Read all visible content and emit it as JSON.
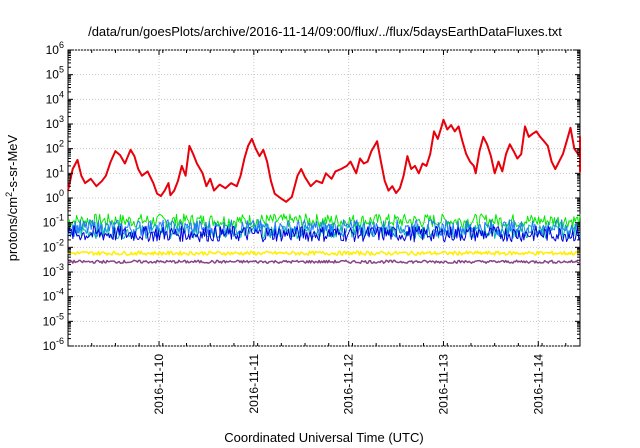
{
  "chart_data": {
    "type": "line",
    "title": "/data/run/goesPlots/archive/2016-11-14/09:00/flux/../flux/5daysEarthDataFluxes.txt",
    "xlabel": "Coordinated Universal Time (UTC)",
    "ylabel": {
      "pre": "protons/cm",
      "sup": "2",
      "post": "-s-sr-MeV"
    },
    "yscale": "log",
    "ylim": [
      1e-06,
      1000000.0
    ],
    "y_ticks": [
      {
        "value": 1e-06,
        "base": "10",
        "exp": "-6"
      },
      {
        "value": 1e-05,
        "base": "10",
        "exp": "-5"
      },
      {
        "value": 0.0001,
        "base": "10",
        "exp": "-4"
      },
      {
        "value": 0.001,
        "base": "10",
        "exp": "-3"
      },
      {
        "value": 0.01,
        "base": "10",
        "exp": "-2"
      },
      {
        "value": 0.1,
        "base": "10",
        "exp": "-1"
      },
      {
        "value": 1,
        "base": "10",
        "exp": "0"
      },
      {
        "value": 10,
        "base": "10",
        "exp": "1"
      },
      {
        "value": 100,
        "base": "10",
        "exp": "2"
      },
      {
        "value": 1000,
        "base": "10",
        "exp": "3"
      },
      {
        "value": 10000,
        "base": "10",
        "exp": "4"
      },
      {
        "value": 100000,
        "base": "10",
        "exp": "5"
      },
      {
        "value": 1000000,
        "base": "10",
        "exp": "6"
      }
    ],
    "x_unit": "days",
    "xlim": [
      0,
      5.4
    ],
    "x_ticks": [
      {
        "value": 0.96,
        "label": "2016-11-10"
      },
      {
        "value": 1.96,
        "label": "2016-11-11"
      },
      {
        "value": 2.96,
        "label": "2016-11-12"
      },
      {
        "value": 3.96,
        "label": "2016-11-13"
      },
      {
        "value": 4.96,
        "label": "2016-11-14"
      }
    ],
    "grid": true,
    "legend": "none",
    "series": [
      {
        "color": "#e8000b",
        "width": 2,
        "points": [
          [
            0,
            2
          ],
          [
            0.05,
            15
          ],
          [
            0.1,
            35
          ],
          [
            0.14,
            8
          ],
          [
            0.18,
            4
          ],
          [
            0.24,
            6
          ],
          [
            0.3,
            3
          ],
          [
            0.36,
            5
          ],
          [
            0.4,
            8
          ],
          [
            0.45,
            30
          ],
          [
            0.5,
            80
          ],
          [
            0.55,
            55
          ],
          [
            0.6,
            25
          ],
          [
            0.66,
            90
          ],
          [
            0.7,
            50
          ],
          [
            0.74,
            15
          ],
          [
            0.78,
            8
          ],
          [
            0.84,
            12
          ],
          [
            0.9,
            4
          ],
          [
            0.94,
            1.5
          ],
          [
            0.98,
            1.2
          ],
          [
            1.02,
            2
          ],
          [
            1.06,
            4
          ],
          [
            1.08,
            1.3
          ],
          [
            1.12,
            2
          ],
          [
            1.16,
            5
          ],
          [
            1.2,
            20
          ],
          [
            1.24,
            8
          ],
          [
            1.28,
            130
          ],
          [
            1.32,
            60
          ],
          [
            1.36,
            25
          ],
          [
            1.42,
            10
          ],
          [
            1.46,
            3
          ],
          [
            1.5,
            6
          ],
          [
            1.54,
            2
          ],
          [
            1.6,
            3.5
          ],
          [
            1.66,
            2.5
          ],
          [
            1.72,
            4
          ],
          [
            1.78,
            3
          ],
          [
            1.82,
            8
          ],
          [
            1.86,
            40
          ],
          [
            1.9,
            130
          ],
          [
            1.94,
            250
          ],
          [
            1.98,
            100
          ],
          [
            2.02,
            50
          ],
          [
            2.06,
            90
          ],
          [
            2.1,
            30
          ],
          [
            2.14,
            5
          ],
          [
            2.18,
            1.5
          ],
          [
            2.24,
            1
          ],
          [
            2.3,
            0.7
          ],
          [
            2.36,
            1.1
          ],
          [
            2.42,
            8
          ],
          [
            2.46,
            15
          ],
          [
            2.5,
            7
          ],
          [
            2.56,
            3
          ],
          [
            2.62,
            5
          ],
          [
            2.68,
            4
          ],
          [
            2.72,
            10
          ],
          [
            2.78,
            6
          ],
          [
            2.82,
            12
          ],
          [
            2.88,
            15
          ],
          [
            2.94,
            20
          ],
          [
            2.98,
            30
          ],
          [
            3.04,
            10
          ],
          [
            3.08,
            40
          ],
          [
            3.12,
            25
          ],
          [
            3.16,
            30
          ],
          [
            3.2,
            80
          ],
          [
            3.26,
            200
          ],
          [
            3.3,
            30
          ],
          [
            3.34,
            5
          ],
          [
            3.38,
            2
          ],
          [
            3.42,
            3
          ],
          [
            3.46,
            1.6
          ],
          [
            3.5,
            2.5
          ],
          [
            3.54,
            8
          ],
          [
            3.58,
            50
          ],
          [
            3.62,
            15
          ],
          [
            3.66,
            20
          ],
          [
            3.7,
            10
          ],
          [
            3.74,
            25
          ],
          [
            3.78,
            20
          ],
          [
            3.82,
            60
          ],
          [
            3.86,
            500
          ],
          [
            3.9,
            250
          ],
          [
            3.94,
            800
          ],
          [
            3.96,
            1500
          ],
          [
            4.0,
            600
          ],
          [
            4.04,
            900
          ],
          [
            4.08,
            500
          ],
          [
            4.12,
            800
          ],
          [
            4.16,
            200
          ],
          [
            4.2,
            60
          ],
          [
            4.24,
            30
          ],
          [
            4.28,
            20
          ],
          [
            4.3,
            10
          ],
          [
            4.34,
            80
          ],
          [
            4.38,
            300
          ],
          [
            4.42,
            150
          ],
          [
            4.46,
            50
          ],
          [
            4.5,
            10
          ],
          [
            4.54,
            30
          ],
          [
            4.58,
            12
          ],
          [
            4.62,
            60
          ],
          [
            4.66,
            150
          ],
          [
            4.7,
            80
          ],
          [
            4.74,
            40
          ],
          [
            4.78,
            60
          ],
          [
            4.82,
            800
          ],
          [
            4.86,
            300
          ],
          [
            4.9,
            400
          ],
          [
            4.94,
            500
          ],
          [
            4.98,
            300
          ],
          [
            5.02,
            200
          ],
          [
            5.06,
            130
          ],
          [
            5.1,
            30
          ],
          [
            5.14,
            15
          ],
          [
            5.18,
            30
          ],
          [
            5.22,
            60
          ],
          [
            5.26,
            200
          ],
          [
            5.3,
            700
          ],
          [
            5.34,
            100
          ],
          [
            5.38,
            60
          ],
          [
            5.42,
            50
          ],
          [
            5.46,
            30
          ],
          [
            5.5,
            20
          ],
          [
            5.54,
            17
          ],
          [
            5.58,
            12
          ],
          [
            5.62,
            20
          ],
          [
            5.66,
            60
          ],
          [
            5.7,
            300
          ],
          [
            5.72,
            80
          ]
        ]
      },
      {
        "color": "#00e800",
        "width": 1,
        "base": 0.12,
        "spread": 0.28
      },
      {
        "color": "#00b8a8",
        "width": 1,
        "base": 0.045,
        "spread": 0.3
      },
      {
        "color": "#1f78ff",
        "width": 1,
        "base": 0.06,
        "spread": 0.35
      },
      {
        "color": "#0000dd",
        "width": 1,
        "base": 0.035,
        "spread": 0.32
      },
      {
        "color": "#ffee00",
        "width": 1.5,
        "base": 0.0058,
        "spread": 0.08
      },
      {
        "color": "#884488",
        "width": 1.5,
        "base": 0.0026,
        "spread": 0.06
      }
    ]
  }
}
